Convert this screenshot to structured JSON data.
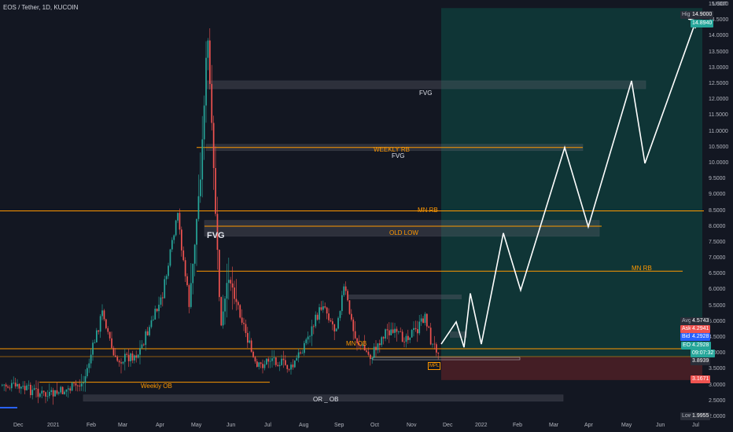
{
  "header": {
    "symbol": "EOS / Tether, 1D, KUCOIN"
  },
  "price_axis": {
    "currency": "USDT",
    "ticks": [
      "15.0000",
      "14.5000",
      "14.0000",
      "13.5000",
      "13.0000",
      "12.5000",
      "12.0000",
      "11.5000",
      "11.0000",
      "10.5000",
      "10.0000",
      "9.5000",
      "9.0000",
      "8.5000",
      "8.0000",
      "7.5000",
      "7.0000",
      "6.5000",
      "6.0000",
      "5.5000",
      "5.0000",
      "4.5000",
      "4.0000",
      "3.5000",
      "3.0000",
      "2.5000",
      "2.0000"
    ]
  },
  "time_axis": {
    "ticks": [
      "Dec",
      "2021",
      "Feb",
      "Mar",
      "Apr",
      "May",
      "Jun",
      "Jul",
      "Aug",
      "Sep",
      "Oct",
      "Nov",
      "Dec",
      "2022",
      "Feb",
      "Mar",
      "Apr",
      "May",
      "Jun",
      "Jul"
    ]
  },
  "price_labels": {
    "high_label": "High",
    "high_value": "14.9000",
    "target_value": "14.8940",
    "avg_label": "Avg",
    "avg_value": "4.5743",
    "ask_label": "Ask",
    "ask_value": "4.2941",
    "bid_label": "Bid",
    "bid_value": "4.2928",
    "symbol_tag": "EOSUSDT",
    "last_value": "4.2928",
    "countdown": "09:07:32",
    "entry_value": "3.8939",
    "stop_value": "3.1671",
    "low_label": "Low",
    "low_value": "1.9955"
  },
  "annotations": {
    "fvg_top": "FVG",
    "weekly_rb": "WEEKLY RB",
    "fvg_mid": "FVG",
    "mn_rb_top": "MN RB",
    "fvg_left": "FVG",
    "old_low": "OLD LOW",
    "mn_rb_right": "MN RB",
    "mn_ob": "MN OB",
    "mpl": "MPL",
    "weekly_ob": "Weekly OB",
    "or_ob": "OR _ OB"
  },
  "colors": {
    "background": "#131722",
    "bull": "#26a69a",
    "bear": "#ef5350",
    "level_line": "#ff9800",
    "target_zone": "#0f3b3a",
    "stop_zone": "#4a1f26",
    "projection": "#ffffff"
  },
  "chart_data": {
    "type": "candlestick",
    "symbol": "EOS / Tether, 1D, KUCOIN",
    "y_range": [
      1.9955,
      14.9
    ],
    "key_prices": {
      "high": 14.9,
      "target": 14.894,
      "avg": 4.5743,
      "ask": 4.2941,
      "bid": 4.2928,
      "last": 4.2928,
      "entry": 3.8939,
      "stop": 3.1671,
      "low": 1.9955
    },
    "horizontal_levels": [
      {
        "label": "MN RB",
        "price": 8.5
      },
      {
        "label": "WEEKLY RB",
        "price": 10.5
      },
      {
        "label": "MN RB",
        "price": 6.6
      },
      {
        "label": "MN OB",
        "price": 4.25
      },
      {
        "label": "Weekly OB",
        "price": 3.1
      }
    ],
    "zones": [
      {
        "label": "FVG",
        "top": 12.6,
        "bottom": 12.35
      },
      {
        "label": "FVG",
        "top": 10.6,
        "bottom": 10.4
      },
      {
        "label": "FVG",
        "top": 8.2,
        "bottom": 7.7
      },
      {
        "label": "OR _ OB",
        "top": 2.7,
        "bottom": 2.5
      }
    ],
    "projection_path": [
      4.3,
      5.0,
      4.2,
      5.9,
      4.3,
      7.8,
      6.0,
      10.5,
      8.0,
      12.6,
      10.0,
      14.5
    ]
  }
}
